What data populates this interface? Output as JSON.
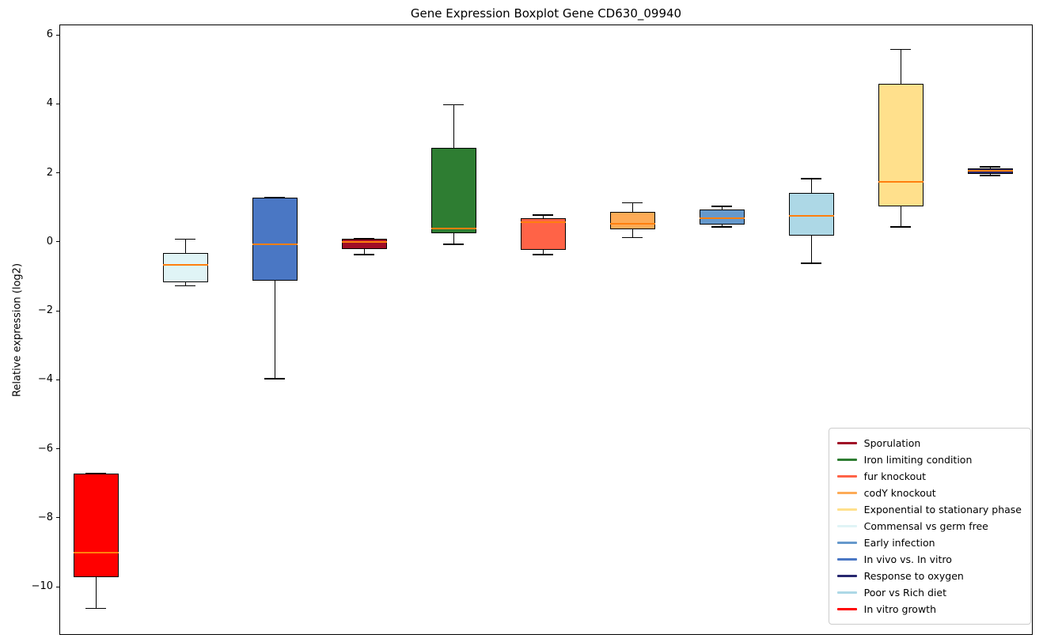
{
  "title": "Gene Expression Boxplot Gene CD630_09940",
  "chart_data": {
    "type": "boxplot",
    "title": "Gene Expression Boxplot Gene CD630_09940",
    "xlabel": "",
    "ylabel": "Relative expression (log2)",
    "ylim": [
      -11.35,
      6.3
    ],
    "y_ticks": [
      6,
      4,
      2,
      0,
      -2,
      -4,
      -6,
      -8,
      -10
    ],
    "x_tick_labels": [],
    "grid": false,
    "median_color": "#ff7f0e",
    "whisker_color": "#000000",
    "box_edge_color": "#000000",
    "series": [
      {
        "name": "In vitro growth",
        "color": "#ff0000",
        "whislo": -10.6,
        "q1": -9.7,
        "med": -9.0,
        "q3": -6.7,
        "whishi": -6.7
      },
      {
        "name": "Commensal vs germ free",
        "color": "#e0f4f6",
        "whislo": -1.25,
        "q1": -1.15,
        "med": -0.65,
        "q3": -0.3,
        "whishi": 0.1
      },
      {
        "name": "In vivo vs. In vitro",
        "color": "#4a77c4",
        "whislo": -3.95,
        "q1": -1.1,
        "med": -0.05,
        "q3": 1.3,
        "whishi": 1.3
      },
      {
        "name": "Sporulation",
        "color": "#a00e26",
        "whislo": -0.35,
        "q1": -0.18,
        "med": 0.03,
        "q3": 0.1,
        "whishi": 0.12
      },
      {
        "name": "Iron limiting condition",
        "color": "#2e7d32",
        "whislo": -0.05,
        "q1": 0.28,
        "med": 0.42,
        "q3": 2.75,
        "whishi": 4.0
      },
      {
        "name": "fur knockout",
        "color": "#ff6347",
        "whislo": -0.35,
        "q1": -0.2,
        "med": 0.6,
        "q3": 0.7,
        "whishi": 0.8
      },
      {
        "name": "codY knockout",
        "color": "#fdab57",
        "whislo": 0.15,
        "q1": 0.38,
        "med": 0.55,
        "q3": 0.9,
        "whishi": 1.15
      },
      {
        "name": "Early infection",
        "color": "#6699cc",
        "whislo": 0.45,
        "q1": 0.52,
        "med": 0.7,
        "q3": 0.95,
        "whishi": 1.05
      },
      {
        "name": "Poor vs Rich diet",
        "color": "#add8e6",
        "whislo": -0.6,
        "q1": 0.2,
        "med": 0.78,
        "q3": 1.45,
        "whishi": 1.85
      },
      {
        "name": "Exponential to stationary phase",
        "color": "#ffe08c",
        "whislo": 0.45,
        "q1": 1.05,
        "med": 1.75,
        "q3": 4.6,
        "whishi": 5.6
      },
      {
        "name": "Response to oxygen",
        "color": "#27276f",
        "whislo": 1.95,
        "q1": 2.0,
        "med": 2.08,
        "q3": 2.15,
        "whishi": 2.2
      }
    ],
    "legend": {
      "position": "lower right",
      "entries": [
        {
          "label": "Sporulation",
          "color": "#a00e26"
        },
        {
          "label": "Iron limiting condition",
          "color": "#2e7d32"
        },
        {
          "label": "fur knockout",
          "color": "#ff6347"
        },
        {
          "label": "codY knockout",
          "color": "#fdab57"
        },
        {
          "label": "Exponential to stationary phase",
          "color": "#ffe08c"
        },
        {
          "label": "Commensal vs germ free",
          "color": "#e0f4f6"
        },
        {
          "label": "Early infection",
          "color": "#6699cc"
        },
        {
          "label": "In vivo vs. In vitro",
          "color": "#4a77c4"
        },
        {
          "label": "Response to oxygen",
          "color": "#27276f"
        },
        {
          "label": "Poor vs Rich diet",
          "color": "#add8e6"
        },
        {
          "label": "In vitro growth",
          "color": "#ff0000"
        }
      ]
    }
  }
}
